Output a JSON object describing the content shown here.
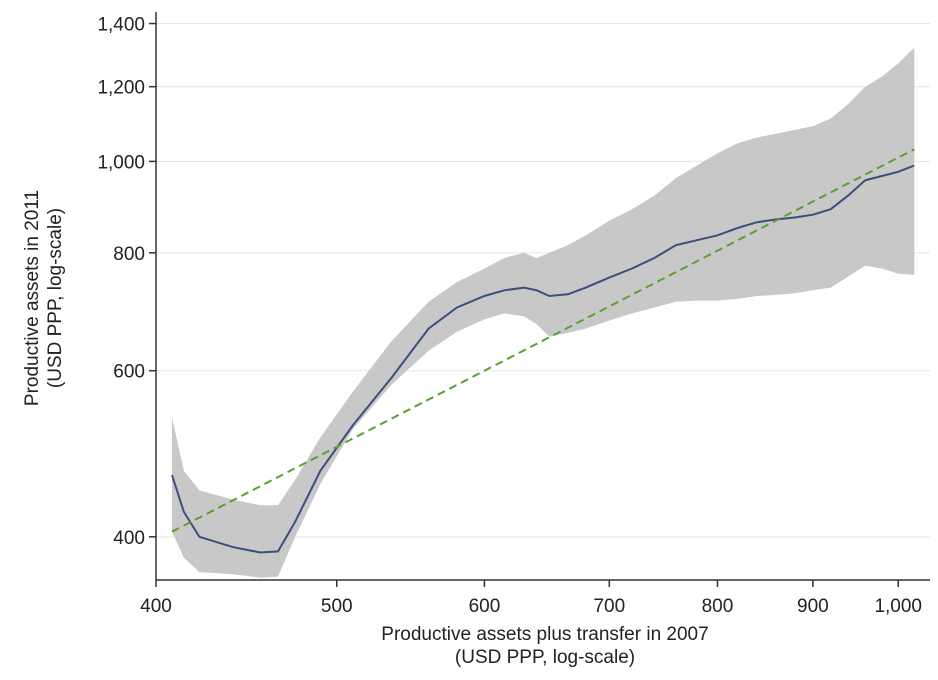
{
  "chart_data": {
    "type": "line",
    "xlabel": "Productive assets plus transfer in 2007",
    "xlabel_sub": "(USD PPP, log-scale)",
    "ylabel": "Productive assets in 2011",
    "ylabel_sub": "(USD PPP, log-scale)",
    "x_scale": "log",
    "y_scale": "log",
    "xlim": [
      400,
      1040
    ],
    "ylim": [
      360,
      1440
    ],
    "grid": "horizontal",
    "legend": "none",
    "x_ticks": [
      {
        "value": 400,
        "label": "400"
      },
      {
        "value": 500,
        "label": "500"
      },
      {
        "value": 600,
        "label": "600"
      },
      {
        "value": 700,
        "label": "700"
      },
      {
        "value": 800,
        "label": "800"
      },
      {
        "value": 900,
        "label": "900"
      },
      {
        "value": 1000,
        "label": "1,000"
      }
    ],
    "y_ticks": [
      {
        "value": 400,
        "label": "400"
      },
      {
        "value": 600,
        "label": "600"
      },
      {
        "value": 800,
        "label": "800"
      },
      {
        "value": 1000,
        "label": "1,000"
      },
      {
        "value": 1200,
        "label": "1,200"
      },
      {
        "value": 1400,
        "label": "1,400"
      }
    ],
    "series": [
      {
        "kind": "ci_band",
        "color": "#c8c8c8",
        "x": [
          408,
          414,
          422,
          440,
          455,
          465,
          475,
          490,
          510,
          535,
          560,
          580,
          600,
          615,
          630,
          640,
          650,
          665,
          680,
          700,
          720,
          740,
          760,
          780,
          800,
          820,
          840,
          860,
          880,
          900,
          920,
          940,
          960,
          980,
          1000,
          1020
        ],
        "upper": [
          535,
          470,
          448,
          438,
          432,
          432,
          460,
          510,
          570,
          645,
          710,
          745,
          770,
          790,
          800,
          790,
          800,
          815,
          835,
          865,
          890,
          920,
          960,
          990,
          1020,
          1045,
          1060,
          1070,
          1080,
          1090,
          1110,
          1150,
          1200,
          1230,
          1270,
          1320
        ],
        "lower": [
          405,
          380,
          367,
          365,
          362,
          363,
          400,
          455,
          520,
          580,
          630,
          660,
          680,
          690,
          685,
          672,
          652,
          658,
          665,
          678,
          690,
          700,
          710,
          712,
          712,
          715,
          720,
          722,
          725,
          730,
          735,
          755,
          775,
          770,
          760,
          758
        ]
      },
      {
        "kind": "line",
        "color": "#3a4f7a",
        "x": [
          408,
          414,
          422,
          440,
          455,
          465,
          475,
          490,
          510,
          535,
          560,
          580,
          600,
          615,
          630,
          640,
          650,
          665,
          680,
          700,
          720,
          740,
          760,
          780,
          800,
          820,
          840,
          860,
          880,
          900,
          920,
          940,
          960,
          980,
          1000,
          1020
        ],
        "y": [
          465,
          425,
          400,
          390,
          385,
          386,
          415,
          470,
          525,
          590,
          665,
          700,
          720,
          730,
          735,
          730,
          720,
          723,
          735,
          753,
          770,
          790,
          815,
          825,
          835,
          850,
          862,
          868,
          872,
          878,
          890,
          920,
          955,
          965,
          975,
          990
        ]
      },
      {
        "kind": "fit",
        "style": "dashed",
        "color": "#5aa02c",
        "x": [
          408,
          1020
        ],
        "y": [
          405,
          1030
        ]
      }
    ]
  }
}
